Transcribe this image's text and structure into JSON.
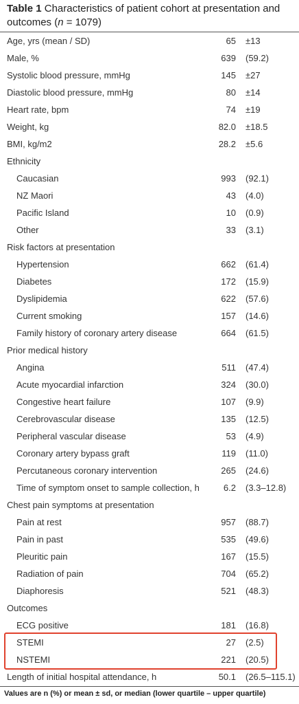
{
  "header": {
    "label": "Table 1",
    "caption_parts": [
      "Characteristics of patient cohort at presentation and outcomes (",
      "n",
      " = 1079)"
    ]
  },
  "table": {
    "rows": [
      {
        "label": "Age, yrs (mean / SD)",
        "value": "65",
        "extra": "±13"
      },
      {
        "label": "Male, %",
        "value": "639",
        "extra": "(59.2)"
      },
      {
        "label": "Systolic blood pressure, mmHg",
        "value": "145",
        "extra": "±27"
      },
      {
        "label": "Diastolic blood pressure, mmHg",
        "value": "80",
        "extra": "±14"
      },
      {
        "label": "Heart rate, bpm",
        "value": "74",
        "extra": "±19"
      },
      {
        "label": "Weight, kg",
        "value": "82.0",
        "extra": "±18.5"
      },
      {
        "label": "BMI, kg/m2",
        "value": "28.2",
        "extra": "±5.6"
      },
      {
        "label": "Ethnicity",
        "items": [
          {
            "label": "Caucasian",
            "value": "993",
            "extra": "(92.1)"
          },
          {
            "label": "NZ Maori",
            "value": "43",
            "extra": "(4.0)"
          },
          {
            "label": "Pacific Island",
            "value": "10",
            "extra": "(0.9)"
          },
          {
            "label": "Other",
            "value": "33",
            "extra": "(3.1)"
          }
        ]
      },
      {
        "label": "Risk factors at presentation",
        "items": [
          {
            "label": "Hypertension",
            "value": "662",
            "extra": "(61.4)"
          },
          {
            "label": "Diabetes",
            "value": "172",
            "extra": "(15.9)"
          },
          {
            "label": "Dyslipidemia",
            "value": "622",
            "extra": "(57.6)"
          },
          {
            "label": "Current smoking",
            "value": "157",
            "extra": "(14.6)"
          },
          {
            "label": "Family history of coronary artery disease",
            "value": "664",
            "extra": "(61.5)"
          }
        ]
      },
      {
        "label": "Prior medical history",
        "items": [
          {
            "label": "Angina",
            "value": "511",
            "extra": "(47.4)"
          },
          {
            "label": "Acute myocardial infarction",
            "value": "324",
            "extra": "(30.0)"
          },
          {
            "label": "Congestive heart failure",
            "value": "107",
            "extra": "(9.9)"
          },
          {
            "label": "Cerebrovascular disease",
            "value": "135",
            "extra": "(12.5)"
          },
          {
            "label": "Peripheral vascular disease",
            "value": "53",
            "extra": "(4.9)"
          },
          {
            "label": "Coronary artery bypass graft",
            "value": "119",
            "extra": "(11.0)"
          },
          {
            "label": "Percutaneous coronary intervention",
            "value": "265",
            "extra": "(24.6)"
          },
          {
            "label": "Time of symptom onset to sample collection, h",
            "value": "6.2",
            "extra": "(3.3–12.8)"
          }
        ]
      },
      {
        "label": "Chest pain symptoms at presentation",
        "items": [
          {
            "label": "Pain at rest",
            "value": "957",
            "extra": "(88.7)"
          },
          {
            "label": "Pain in past",
            "value": "535",
            "extra": "(49.6)"
          },
          {
            "label": "Pleuritic pain",
            "value": "167",
            "extra": "(15.5)"
          },
          {
            "label": "Radiation of pain",
            "value": "704",
            "extra": "(65.2)"
          },
          {
            "label": "Diaphoresis",
            "value": "521",
            "extra": "(48.3)"
          }
        ]
      },
      {
        "label": "Outcomes",
        "items": [
          {
            "label": "ECG positive",
            "value": "181",
            "extra": "(16.8)"
          },
          {
            "label": "STEMI",
            "value": "27",
            "extra": "(2.5)"
          },
          {
            "label": "NSTEMI",
            "value": "221",
            "extra": "(20.5)"
          }
        ]
      },
      {
        "label": "Length of initial hospital attendance, h",
        "value": "50.1",
        "extra": "(26.5–115.1)"
      }
    ]
  },
  "footnote": "Values are n (%) or mean ± sd, or median (lower quartile – upper quartile)"
}
